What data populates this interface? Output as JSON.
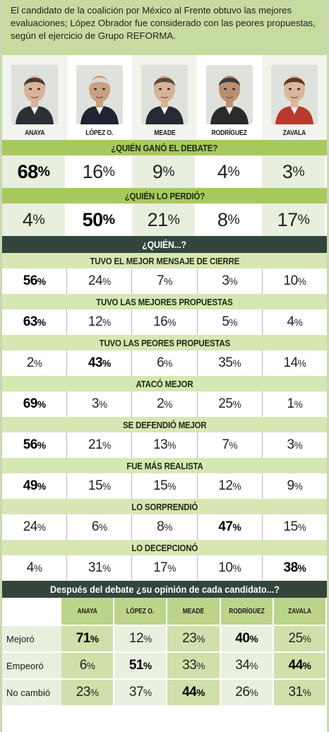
{
  "intro": "El candidato de la coalición por México al Frente obtuvo las mejores evaluaciones; López Obrador fue considerado con las peores propuestas, según el  ejercicio de Grupo REFORMA.",
  "candidates": [
    {
      "name": "ANAYA",
      "skin": "#d8b39a",
      "hair": "#4a3a2c",
      "suit": "#2b2f36"
    },
    {
      "name": "LÓPEZ O.",
      "skin": "#c9a080",
      "hair": "#d8d8d8",
      "suit": "#1e2430"
    },
    {
      "name": "MEADE",
      "skin": "#d7b298",
      "hair": "#5a4a3c",
      "suit": "#262a33"
    },
    {
      "name": "RODRÍGUEZ",
      "skin": "#b98f72",
      "hair": "#3a3a3a",
      "suit": "#2a2a2a"
    },
    {
      "name": "ZAVALA",
      "skin": "#dcb59c",
      "hair": "#5a3a22",
      "suit": "#b83a2c"
    }
  ],
  "q1": {
    "title": "¿QUIÉN GANÓ EL DEBATE?",
    "values": [
      "68",
      "16",
      "9",
      "4",
      "3"
    ],
    "bold": 0
  },
  "q2": {
    "title": "¿QUIÉN LO PERDIÓ?",
    "values": [
      "4",
      "50",
      "21",
      "8",
      "17"
    ],
    "bold": 1
  },
  "section_title": "¿QUIÉN...?",
  "items": [
    {
      "title": "TUVO EL MEJOR MENSAJE DE CIERRE",
      "values": [
        "56",
        "24",
        "7",
        "3",
        "10"
      ],
      "bold": 0
    },
    {
      "title": "TUVO LAS MEJORES PROPUESTAS",
      "values": [
        "63",
        "12",
        "16",
        "5",
        "4"
      ],
      "bold": 0
    },
    {
      "title": "TUVO LAS PEORES PROPUESTAS",
      "values": [
        "2",
        "43",
        "6",
        "35",
        "14"
      ],
      "bold": 1
    },
    {
      "title": "ATACÓ MEJOR",
      "values": [
        "69",
        "3",
        "2",
        "25",
        "1"
      ],
      "bold": 0
    },
    {
      "title": "SE DEFENDIÓ MEJOR",
      "values": [
        "56",
        "21",
        "13",
        "7",
        "3"
      ],
      "bold": 0
    },
    {
      "title": "FUE MÁS REALISTA",
      "values": [
        "49",
        "15",
        "15",
        "12",
        "9"
      ],
      "bold": 0
    },
    {
      "title": "LO SORPRENDIÓ",
      "values": [
        "24",
        "6",
        "8",
        "47",
        "15"
      ],
      "bold": 3
    },
    {
      "title": "LO DECEPCIONÓ",
      "values": [
        "4",
        "31",
        "17",
        "10",
        "38"
      ],
      "bold": 4
    }
  ],
  "pct": "%",
  "opinion": {
    "title": "Después del debate ¿su opinión de cada candidato...?",
    "columns": [
      "ANAYA",
      "LÓPEZ O.",
      "MEADE",
      "RODRÍGUEZ",
      "ZAVALA"
    ],
    "rows": [
      {
        "label": "Mejoró",
        "values": [
          "71",
          "12",
          "23",
          "40",
          "25"
        ],
        "bold": [
          0,
          3
        ]
      },
      {
        "label": "Empeoró",
        "values": [
          "6",
          "51",
          "33",
          "34",
          "44"
        ],
        "bold": [
          1,
          4
        ]
      },
      {
        "label": "No cambió",
        "values": [
          "23",
          "37",
          "44",
          "26",
          "31"
        ],
        "bold": [
          2
        ]
      }
    ]
  },
  "chart_data": {
    "type": "table",
    "categories": [
      "ANAYA",
      "LÓPEZ O.",
      "MEADE",
      "RODRÍGUEZ",
      "ZAVALA"
    ],
    "series": [
      {
        "name": "¿QUIÉN GANÓ EL DEBATE?",
        "values": [
          68,
          16,
          9,
          4,
          3
        ]
      },
      {
        "name": "¿QUIÉN LO PERDIÓ?",
        "values": [
          4,
          50,
          21,
          8,
          17
        ]
      },
      {
        "name": "TUVO EL MEJOR MENSAJE DE CIERRE",
        "values": [
          56,
          24,
          7,
          3,
          10
        ]
      },
      {
        "name": "TUVO LAS MEJORES PROPUESTAS",
        "values": [
          63,
          12,
          16,
          5,
          4
        ]
      },
      {
        "name": "TUVO LAS PEORES PROPUESTAS",
        "values": [
          2,
          43,
          6,
          35,
          14
        ]
      },
      {
        "name": "ATACÓ MEJOR",
        "values": [
          69,
          3,
          2,
          25,
          1
        ]
      },
      {
        "name": "SE DEFENDIÓ MEJOR",
        "values": [
          56,
          21,
          13,
          7,
          3
        ]
      },
      {
        "name": "FUE MÁS REALISTA",
        "values": [
          49,
          15,
          15,
          12,
          9
        ]
      },
      {
        "name": "LO SORPRENDIÓ",
        "values": [
          24,
          6,
          8,
          47,
          15
        ]
      },
      {
        "name": "LO DECEPCIONÓ",
        "values": [
          4,
          31,
          17,
          10,
          38
        ]
      },
      {
        "name": "Mejoró",
        "values": [
          71,
          12,
          23,
          40,
          25
        ]
      },
      {
        "name": "Empeoró",
        "values": [
          6,
          51,
          33,
          34,
          44
        ]
      },
      {
        "name": "No cambió",
        "values": [
          23,
          37,
          44,
          26,
          31
        ]
      }
    ]
  }
}
